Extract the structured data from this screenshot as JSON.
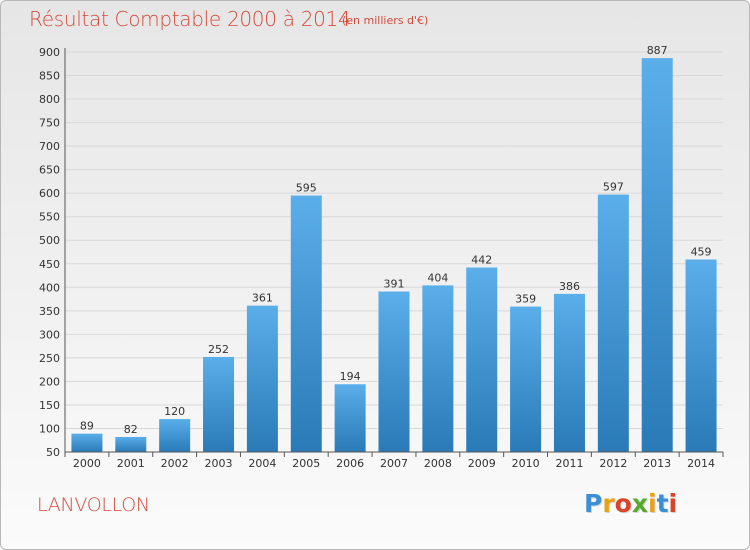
{
  "header": {
    "title": "Résultat Comptable 2000 à 2014",
    "subtitle": "(en milliers d'€)"
  },
  "footer": {
    "commune": "LANVOLLON",
    "logo_text": "Proxiti",
    "logo_colors": [
      "#3a8fd6",
      "#e8a21a",
      "#d8452b",
      "#5aa82e",
      "#e8a21a",
      "#3a8fd6",
      "#d8452b"
    ]
  },
  "colors": {
    "bar_top": "#5aaeea",
    "bar_bottom": "#2a7ab8",
    "title": "#d44a3a",
    "grid": "#d8d8d8"
  },
  "chart_data": {
    "type": "bar",
    "categories": [
      "2000",
      "2001",
      "2002",
      "2003",
      "2004",
      "2005",
      "2006",
      "2007",
      "2008",
      "2009",
      "2010",
      "2011",
      "2012",
      "2013",
      "2014"
    ],
    "values": [
      89,
      82,
      120,
      252,
      361,
      595,
      194,
      391,
      404,
      442,
      359,
      386,
      597,
      887,
      459
    ],
    "title": "Résultat Comptable 2000 à 2014",
    "xlabel": "",
    "ylabel": "",
    "ylim": [
      50,
      900
    ],
    "yticks": [
      50,
      100,
      150,
      200,
      250,
      300,
      350,
      400,
      450,
      500,
      550,
      600,
      650,
      700,
      750,
      800,
      850,
      900
    ],
    "grid": true
  }
}
